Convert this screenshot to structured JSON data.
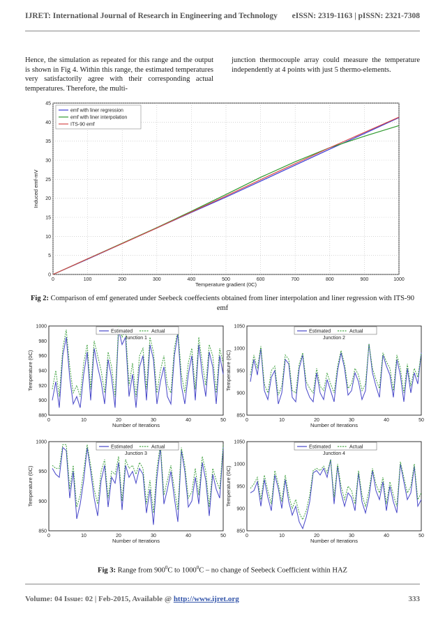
{
  "header": {
    "journal": "IJRET: International Journal of Research in Engineering and Technology",
    "issn": "eISSN: 2319-1163 | pISSN: 2321-7308"
  },
  "body_text": {
    "left_col": "Hence, the simulation as repeated for this range and the output is shown in Fig 4. Within this range, the estimated temperatures very satisfactorily agree with their corresponding actual temperatures. Therefore, the multi-",
    "right_col": "junction thermocouple array could measure the temperature independently at 4 points with just 5 thermo-elements."
  },
  "fig2_caption": {
    "label": "Fig 2:",
    "text": "Comparison of emf generated under Seebeck coeffecients obtained from liner interpolation and liner regression with ITS-90 emf"
  },
  "fig3_caption": {
    "label": "Fig 3:",
    "pre": "Range from 900",
    "sup1": "0",
    "mid": "C to 1000",
    "sup2": "0",
    "post": "C – no change of Seebeck Coefficient within HAZ"
  },
  "footer": {
    "left_text": "Volume: 04 Issue: 02 | Feb-2015, Available @ ",
    "url": "http://www.ijret.org",
    "page": "333"
  },
  "chart_data": [
    {
      "type": "line",
      "xlabel": "Temperature gradient (0C)",
      "ylabel": "Induced emf-mV",
      "xlim": [
        0,
        1000
      ],
      "ylim": [
        0,
        45
      ],
      "xticks": [
        "0",
        "100",
        "200",
        "300",
        "400",
        "500",
        "600",
        "700",
        "800",
        "900",
        "1000"
      ],
      "yticks": [
        "0",
        "5",
        "10",
        "15",
        "20",
        "25",
        "30",
        "35",
        "40",
        "45"
      ],
      "grid": true,
      "legend": "top-left",
      "x": [
        0,
        100,
        200,
        300,
        400,
        500,
        600,
        700,
        800,
        900,
        1000
      ],
      "series": [
        {
          "name": "emf with liner regression",
          "color": "#3b3bd6",
          "values": [
            0,
            4.0,
            8.1,
            12.2,
            16.3,
            20.3,
            24.5,
            28.7,
            32.9,
            37.0,
            41.2
          ]
        },
        {
          "name": "emf with liner interpolation",
          "color": "#2e9a2e",
          "values": [
            0,
            4.1,
            8.2,
            12.3,
            16.6,
            21.0,
            25.5,
            29.6,
            33.3,
            36.3,
            39.1
          ]
        },
        {
          "name": "ITS-90 emf",
          "color": "#d64a4a",
          "values": [
            0,
            4.1,
            8.1,
            12.2,
            16.4,
            20.6,
            24.9,
            29.1,
            33.3,
            37.3,
            41.3
          ]
        }
      ]
    },
    {
      "type": "line",
      "title": "Junction 1",
      "xlabel": "Number of Iterations",
      "ylabel": "Temperature (0C)",
      "xlim": [
        0,
        50
      ],
      "ylim": [
        880,
        1000
      ],
      "xticks": [
        "0",
        "10",
        "20",
        "30",
        "40",
        "50"
      ],
      "yticks": [
        "880",
        "900",
        "920",
        "940",
        "960",
        "980",
        "1000"
      ],
      "legend": [
        "Estimated",
        "Actual"
      ],
      "x": [
        1,
        2,
        3,
        4,
        5,
        6,
        7,
        8,
        9,
        10,
        11,
        12,
        13,
        14,
        15,
        16,
        17,
        18,
        19,
        20,
        21,
        22,
        23,
        24,
        25,
        26,
        27,
        28,
        29,
        30,
        31,
        32,
        33,
        34,
        35,
        36,
        37,
        38,
        39,
        40,
        41,
        42,
        43,
        44,
        45,
        46,
        47,
        48,
        49,
        50
      ],
      "series": [
        {
          "name": "Estimated",
          "values": [
            900,
            925,
            890,
            960,
            985,
            930,
            895,
            905,
            890,
            935,
            965,
            900,
            970,
            945,
            925,
            895,
            955,
            930,
            890,
            995,
            975,
            985,
            905,
            935,
            890,
            945,
            960,
            900,
            975,
            955,
            895,
            925,
            945,
            905,
            895,
            960,
            990,
            920,
            895,
            935,
            960,
            900,
            975,
            935,
            905,
            965,
            945,
            895,
            960,
            935
          ]
        },
        {
          "name": "Actual",
          "values": [
            915,
            940,
            905,
            970,
            995,
            945,
            910,
            920,
            905,
            950,
            975,
            915,
            980,
            960,
            940,
            910,
            965,
            945,
            905,
            1000,
            985,
            995,
            920,
            950,
            905,
            960,
            970,
            915,
            985,
            965,
            910,
            940,
            960,
            920,
            910,
            970,
            995,
            935,
            910,
            950,
            970,
            915,
            985,
            950,
            920,
            975,
            960,
            910,
            970,
            950
          ]
        }
      ]
    },
    {
      "type": "line",
      "title": "Junction 2",
      "xlabel": "Number of Iterations",
      "ylabel": "Temperature (0C)",
      "xlim": [
        0,
        50
      ],
      "ylim": [
        850,
        1050
      ],
      "xticks": [
        "0",
        "10",
        "20",
        "30",
        "40",
        "50"
      ],
      "yticks": [
        "850",
        "900",
        "950",
        "1000",
        "1050"
      ],
      "legend": [
        "Estimated",
        "Actual"
      ],
      "x": [
        1,
        2,
        3,
        4,
        5,
        6,
        7,
        8,
        9,
        10,
        11,
        12,
        13,
        14,
        15,
        16,
        17,
        18,
        19,
        20,
        21,
        22,
        23,
        24,
        25,
        26,
        27,
        28,
        29,
        30,
        31,
        32,
        33,
        34,
        35,
        36,
        37,
        38,
        39,
        40,
        41,
        42,
        43,
        44,
        45,
        46,
        47,
        48,
        49,
        50
      ],
      "series": [
        {
          "name": "Estimated",
          "values": [
            925,
            975,
            940,
            1000,
            905,
            885,
            935,
            950,
            875,
            900,
            975,
            965,
            890,
            880,
            955,
            985,
            910,
            890,
            880,
            945,
            900,
            885,
            930,
            905,
            880,
            950,
            990,
            955,
            895,
            905,
            945,
            925,
            885,
            905,
            1010,
            945,
            915,
            890,
            985,
            960,
            940,
            890,
            975,
            940,
            880,
            955,
            900,
            945,
            920,
            990
          ]
        },
        {
          "name": "Actual",
          "values": [
            940,
            985,
            955,
            1005,
            920,
            900,
            950,
            960,
            895,
            915,
            985,
            975,
            905,
            900,
            965,
            990,
            925,
            910,
            900,
            955,
            915,
            905,
            945,
            920,
            900,
            960,
            995,
            965,
            910,
            920,
            955,
            940,
            905,
            920,
            1010,
            955,
            930,
            910,
            990,
            970,
            955,
            905,
            985,
            955,
            900,
            965,
            915,
            955,
            935,
            990
          ]
        }
      ]
    },
    {
      "type": "line",
      "title": "Junction 3",
      "xlabel": "Number of Iterations",
      "ylabel": "Temperature (0C)",
      "xlim": [
        0,
        50
      ],
      "ylim": [
        850,
        1000
      ],
      "xticks": [
        "0",
        "10",
        "20",
        "30",
        "40",
        "50"
      ],
      "yticks": [
        "850",
        "900",
        "950",
        "1000"
      ],
      "legend": [
        "Estimated",
        "Actual"
      ],
      "x": [
        1,
        2,
        3,
        4,
        5,
        6,
        7,
        8,
        9,
        10,
        11,
        12,
        13,
        14,
        15,
        16,
        17,
        18,
        19,
        20,
        21,
        22,
        23,
        24,
        25,
        26,
        27,
        28,
        29,
        30,
        31,
        32,
        33,
        34,
        35,
        36,
        37,
        38,
        39,
        40,
        41,
        42,
        43,
        44,
        45,
        46,
        47,
        48,
        49,
        50
      ],
      "series": [
        {
          "name": "Estimated",
          "values": [
            955,
            945,
            940,
            990,
            985,
            905,
            950,
            870,
            895,
            935,
            990,
            950,
            905,
            875,
            935,
            960,
            890,
            940,
            930,
            965,
            885,
            960,
            940,
            950,
            930,
            955,
            945,
            880,
            920,
            860,
            940,
            990,
            895,
            920,
            950,
            905,
            865,
            985,
            950,
            890,
            900,
            940,
            895,
            965,
            935,
            875,
            945,
            920,
            905,
            990
          ]
        },
        {
          "name": "Actual",
          "values": [
            960,
            955,
            955,
            995,
            995,
            920,
            960,
            890,
            910,
            950,
            995,
            960,
            920,
            895,
            950,
            970,
            905,
            950,
            945,
            975,
            900,
            970,
            955,
            960,
            945,
            965,
            955,
            895,
            935,
            880,
            955,
            995,
            910,
            935,
            960,
            920,
            885,
            990,
            960,
            905,
            915,
            955,
            910,
            975,
            950,
            890,
            955,
            935,
            920,
            995
          ]
        }
      ]
    },
    {
      "type": "line",
      "title": "Junction 4",
      "xlabel": "Number of Iterations",
      "ylabel": "Temperature (0C)",
      "xlim": [
        0,
        50
      ],
      "ylim": [
        850,
        1050
      ],
      "xticks": [
        "0",
        "10",
        "20",
        "30",
        "40",
        "50"
      ],
      "yticks": [
        "850",
        "900",
        "950",
        "1000",
        "1050"
      ],
      "legend": [
        "Estimated",
        "Actual"
      ],
      "x": [
        1,
        2,
        3,
        4,
        5,
        6,
        7,
        8,
        9,
        10,
        11,
        12,
        13,
        14,
        15,
        16,
        17,
        18,
        19,
        20,
        21,
        22,
        23,
        24,
        25,
        26,
        27,
        28,
        29,
        30,
        31,
        32,
        33,
        34,
        35,
        36,
        37,
        38,
        39,
        40,
        41,
        42,
        43,
        44,
        45,
        46,
        47,
        48,
        49,
        50
      ],
      "series": [
        {
          "name": "Estimated",
          "values": [
            935,
            940,
            960,
            905,
            965,
            925,
            895,
            975,
            945,
            900,
            965,
            915,
            885,
            905,
            870,
            855,
            880,
            915,
            980,
            985,
            975,
            990,
            970,
            1010,
            910,
            995,
            935,
            905,
            935,
            925,
            895,
            980,
            915,
            890,
            925,
            985,
            940,
            920,
            960,
            895,
            950,
            915,
            890,
            1000,
            960,
            920,
            935,
            995,
            905,
            920
          ]
        },
        {
          "name": "Actual",
          "values": [
            945,
            955,
            970,
            920,
            975,
            940,
            910,
            985,
            955,
            915,
            975,
            930,
            900,
            920,
            890,
            875,
            895,
            930,
            985,
            990,
            985,
            995,
            980,
            1010,
            925,
            1000,
            950,
            920,
            950,
            940,
            910,
            985,
            930,
            905,
            940,
            990,
            955,
            935,
            970,
            910,
            960,
            930,
            905,
            1005,
            970,
            935,
            950,
            1000,
            920,
            935
          ]
        }
      ]
    }
  ]
}
